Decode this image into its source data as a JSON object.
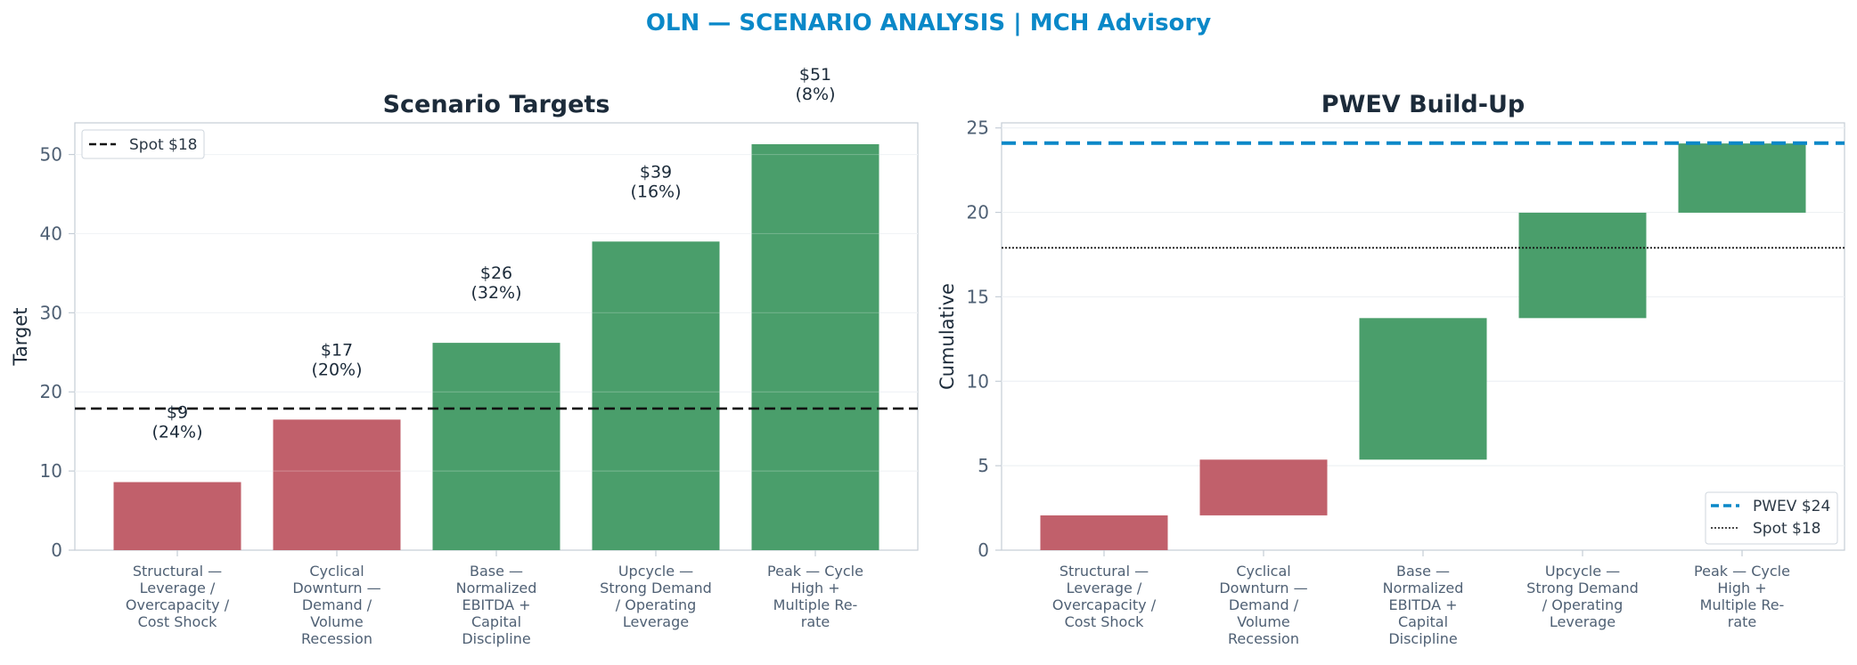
{
  "suptitle": "OLN — SCENARIO ANALYSIS | MCH Advisory",
  "colors": {
    "accent": "#0a88c8",
    "negative": "#c1606b",
    "positive": "#4a9e6b",
    "spot": "#111111",
    "grid": "#eef1f4",
    "axis": "#c5cdd6"
  },
  "chart_data": [
    {
      "type": "bar",
      "title": "Scenario Targets",
      "xlabel": "",
      "ylabel": "Target",
      "ylim": [
        0,
        54
      ],
      "yticks": [
        0,
        10,
        20,
        30,
        40,
        50
      ],
      "grid": true,
      "legend_position": "top-left",
      "categories": [
        [
          "Structural —",
          "Leverage /",
          "Overcapacity /",
          "Cost Shock"
        ],
        [
          "Cyclical",
          "Downturn —",
          "Demand /",
          "Volume",
          "Recession"
        ],
        [
          "Base —",
          "Normalized",
          "EBITDA +",
          "Capital",
          "Discipline"
        ],
        [
          "Upcycle —",
          "Strong Demand",
          "/ Operating",
          "Leverage"
        ],
        [
          "Peak — Cycle",
          "High +",
          "Multiple Re-",
          "rate"
        ]
      ],
      "values": [
        8.6,
        16.5,
        26.2,
        39.0,
        51.3
      ],
      "bar_colors": [
        "negative",
        "negative",
        "positive",
        "positive",
        "positive"
      ],
      "data_labels": [
        [
          "$9",
          "(24%)"
        ],
        [
          "$17",
          "(20%)"
        ],
        [
          "$26",
          "(32%)"
        ],
        [
          "$39",
          "(16%)"
        ],
        [
          "$51",
          "(8%)"
        ]
      ],
      "reference_line": {
        "value": 17.9,
        "label": "Spot $18",
        "style": "dashed"
      }
    },
    {
      "type": "waterfall",
      "title": "PWEV Build-Up",
      "xlabel": "",
      "ylabel": "Cumulative",
      "ylim": [
        0,
        25.3
      ],
      "yticks": [
        0,
        5,
        10,
        15,
        20,
        25
      ],
      "grid": true,
      "legend_position": "bottom-right",
      "categories": [
        [
          "Structural —",
          "Leverage /",
          "Overcapacity /",
          "Cost Shock"
        ],
        [
          "Cyclical",
          "Downturn —",
          "Demand /",
          "Volume",
          "Recession"
        ],
        [
          "Base —",
          "Normalized",
          "EBITDA +",
          "Capital",
          "Discipline"
        ],
        [
          "Upcycle —",
          "Strong Demand",
          "/ Operating",
          "Leverage"
        ],
        [
          "Peak — Cycle",
          "High +",
          "Multiple Re-",
          "rate"
        ]
      ],
      "steps": [
        {
          "start": 0,
          "end": 2.06
        },
        {
          "start": 2.06,
          "end": 5.36
        },
        {
          "start": 5.36,
          "end": 13.74
        },
        {
          "start": 13.74,
          "end": 19.98
        },
        {
          "start": 19.98,
          "end": 24.08
        }
      ],
      "bar_colors": [
        "negative",
        "negative",
        "positive",
        "positive",
        "positive"
      ],
      "reference_lines": [
        {
          "value": 24.1,
          "label": "PWEV $24",
          "style": "dashed",
          "color": "accent"
        },
        {
          "value": 17.9,
          "label": "Spot $18",
          "style": "dotted",
          "color": "spot"
        }
      ]
    }
  ]
}
